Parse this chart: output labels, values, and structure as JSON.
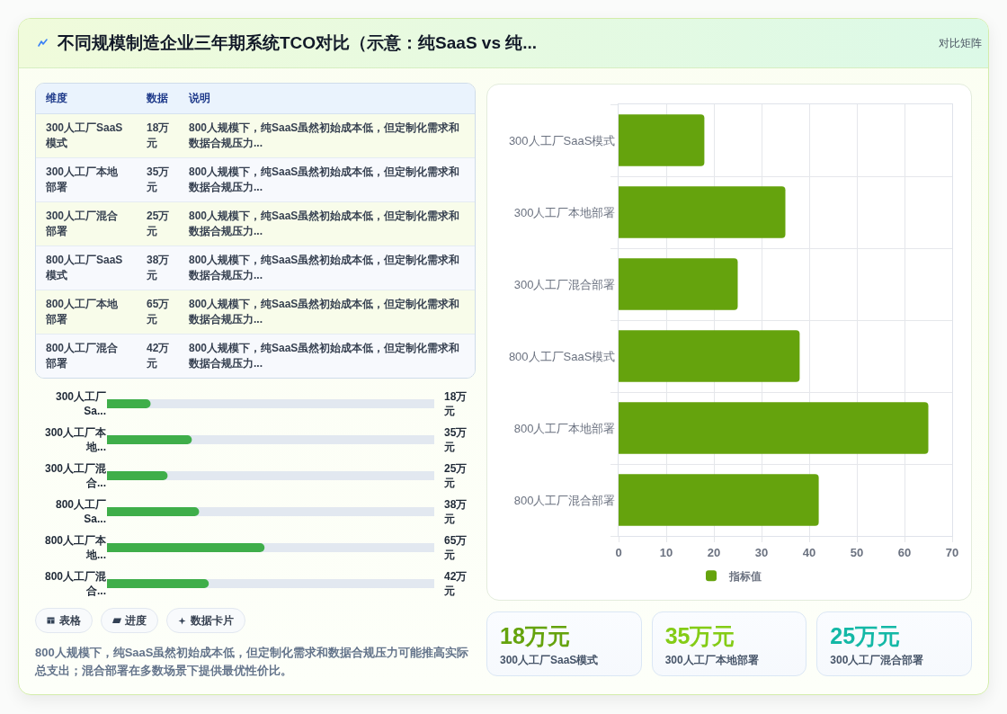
{
  "chart_data": [
    {
      "type": "other",
      "title": "不同规模制造企业三年期系统TCO对比（示意：纯SaaS vs 纯...",
      "subtitle": "对比矩阵",
      "ylabel": "维度",
      "categories": [
        "数据",
        "说明"
      ],
      "y_categories": [
        "300人工厂SaaS模式",
        "300人工厂本地部署",
        "300人工厂混合部署",
        "800人工厂SaaS模式",
        "800人工厂本地部署",
        "800人工厂混合部署"
      ],
      "cell_labels": [
        [
          "18万元",
          "800人规模下，纯SaaS虽然初始成本低，但定制化需求和数据合规压力..."
        ],
        [
          "35万元",
          "800人规模下，纯SaaS虽然初始成本低，但定制化需求和数据合规压力..."
        ],
        [
          "25万元",
          "800人规模下，纯SaaS虽然初始成本低，但定制化需求和数据合规压力..."
        ],
        [
          "38万元",
          "800人规模下，纯SaaS虽然初始成本低，但定制化需求和数据合规压力..."
        ],
        [
          "65万元",
          "800人规模下，纯SaaS虽然初始成本低，但定制化需求和数据合规压力..."
        ],
        [
          "42万元",
          "800人规模下，纯SaaS虽然初始成本低，但定制化需求和数据合规压力..."
        ]
      ]
    },
    {
      "type": "bar",
      "orientation": "horizontal",
      "categories": [
        "300人工厂Sa...",
        "300人工厂本地...",
        "300人工厂混合...",
        "800人工厂Sa...",
        "800人工厂本地...",
        "800人工厂混合..."
      ],
      "values": [
        18,
        35,
        25,
        38,
        65,
        42
      ],
      "value_labels": [
        "18万元",
        "35万元",
        "25万元",
        "38万元",
        "65万元",
        "42万元"
      ],
      "color": "#3fae4a",
      "xlim": [
        0,
        135
      ],
      "tick_labels": "y",
      "annotations": [
        "表格",
        "进度",
        "数据卡片",
        "800人规模下，纯SaaS虽然初始成本低，但定制化需求和数据合规压力可能推高实际总支出；混合部署在多数场景下提供最优性价比。"
      ]
    },
    {
      "type": "bar",
      "orientation": "horizontal",
      "categories": [
        "300人工厂SaaS模式",
        "300人工厂本地部署",
        "300人工厂混合部署",
        "800人工厂SaaS模式",
        "800人工厂本地部署",
        "800人工厂混合部署"
      ],
      "series": [
        {
          "name": "指标值",
          "color": "#65a30d",
          "values": [
            18,
            35,
            25,
            38,
            65,
            42
          ]
        }
      ],
      "xlim": [
        0,
        70
      ],
      "xticks": [
        0,
        10,
        20,
        30,
        40,
        50,
        60,
        70
      ],
      "grid": true,
      "legend": "bottom"
    },
    {
      "type": "other",
      "categories": [
        "300人工厂SaaS模式",
        "300人工厂本地部署",
        "300人工厂混合部署"
      ],
      "value_labels": [
        "18万元",
        "35万元",
        "25万元"
      ]
    }
  ]
}
